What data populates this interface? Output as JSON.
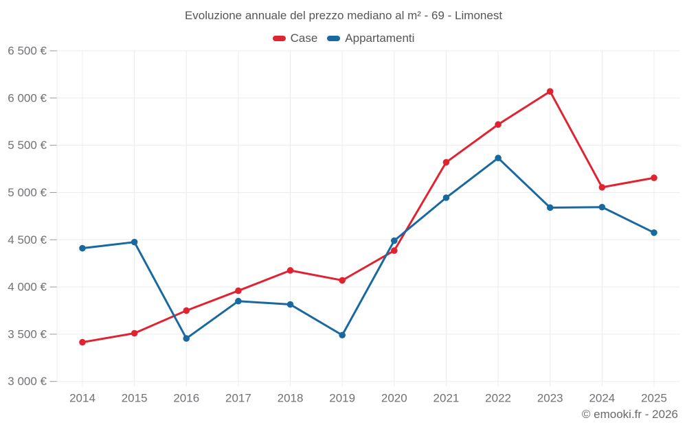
{
  "header": {
    "title": "Evoluzione annuale del prezzo mediano al m² - 69 - Limonest"
  },
  "footer": {
    "text": "© emooki.fr - 2026"
  },
  "chart_data": {
    "type": "line",
    "title": "Evoluzione annuale del prezzo mediano al m² - 69 - Limonest",
    "x": [
      2014,
      2015,
      2016,
      2017,
      2018,
      2019,
      2020,
      2021,
      2022,
      2023,
      2024,
      2025
    ],
    "series": [
      {
        "name": "Case",
        "color": "#e02330",
        "values": [
          3415,
          3510,
          3750,
          3960,
          4175,
          4070,
          4385,
          5320,
          5720,
          6070,
          5055,
          5155
        ]
      },
      {
        "name": "Appartamenti",
        "color": "#17699f",
        "values": [
          4410,
          4475,
          3455,
          3850,
          3815,
          3490,
          4490,
          4945,
          5365,
          4840,
          4845,
          4575
        ]
      }
    ],
    "ylim": [
      3000,
      6500
    ],
    "ytick_step": 500,
    "ytick_suffix": " €",
    "xlabel": "",
    "ylabel": "",
    "grid": true,
    "legend_position": "top",
    "marker": "circle"
  },
  "colors": {
    "grid": "#ececec",
    "tick": "#999999",
    "axis_label": "#6f7174",
    "series_case": "#e02330",
    "series_appartamenti": "#17699f"
  }
}
